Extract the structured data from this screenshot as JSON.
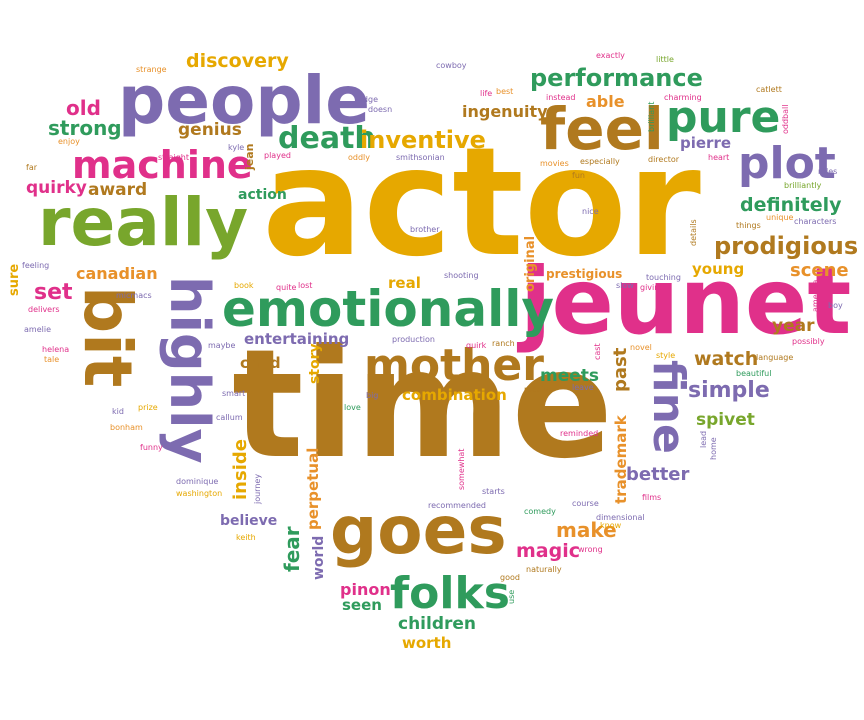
{
  "palette": {
    "gold": "#e6a800",
    "brown": "#b0791e",
    "green": "#2f9b5c",
    "purple": "#7d6bb0",
    "pink": "#e0308a",
    "olive": "#78a62c",
    "orange": "#e8912a"
  },
  "words": [
    "actor",
    "time",
    "jeunet",
    "people",
    "really",
    "emotionally",
    "feel",
    "mother",
    "goes",
    "highly",
    "bit",
    "pure",
    "plot",
    "machine",
    "death",
    "folks",
    "fine",
    "inventive",
    "performance",
    "prodigious",
    "discovery",
    "old",
    "strong",
    "genius",
    "quirky",
    "award",
    "canadian",
    "set",
    "definitely",
    "scene",
    "year",
    "watch",
    "simple",
    "spivet",
    "better",
    "make",
    "magic",
    "pinon",
    "seen",
    "children",
    "worth",
    "combination",
    "meets",
    "past",
    "inside",
    "fear",
    "world",
    "perpetual",
    "believe",
    "child",
    "entertaining",
    "real",
    "story",
    "action",
    "ingenuity",
    "able",
    "pierre",
    "young",
    "trademark",
    "original",
    "strange",
    "cowboy",
    "exactly",
    "little",
    "catlett",
    "oddball",
    "roles",
    "characters",
    "brilliantly",
    "things",
    "unique",
    "details",
    "america",
    "boy",
    "language",
    "possibly",
    "beautiful",
    "style",
    "novel",
    "cast",
    "leave",
    "receive",
    "production",
    "ranch",
    "quirk",
    "big",
    "love",
    "prize",
    "callum",
    "smart",
    "maybe",
    "kid",
    "funny",
    "bonham",
    "washington",
    "dominique",
    "keith",
    "journey",
    "somewhat",
    "recommended",
    "starts",
    "comedy",
    "course",
    "dimensional",
    "wrong",
    "know",
    "films",
    "good",
    "naturally",
    "use",
    "reminded",
    "lead",
    "home",
    "sure",
    "feeling",
    "micmacs",
    "delivers",
    "amelie",
    "helena",
    "tale",
    "enjoy",
    "far",
    "kyle",
    "jean",
    "played",
    "edge",
    "doesn",
    "oddly",
    "smithsonian",
    "movies",
    "especially",
    "director",
    "heart",
    "instead",
    "best",
    "life",
    "charming",
    "brilliant",
    "nice",
    "brother",
    "book",
    "quite",
    "lost",
    "shooting",
    "touching",
    "slow",
    "giving",
    "prestigious",
    "straight",
    "fun"
  ]
}
